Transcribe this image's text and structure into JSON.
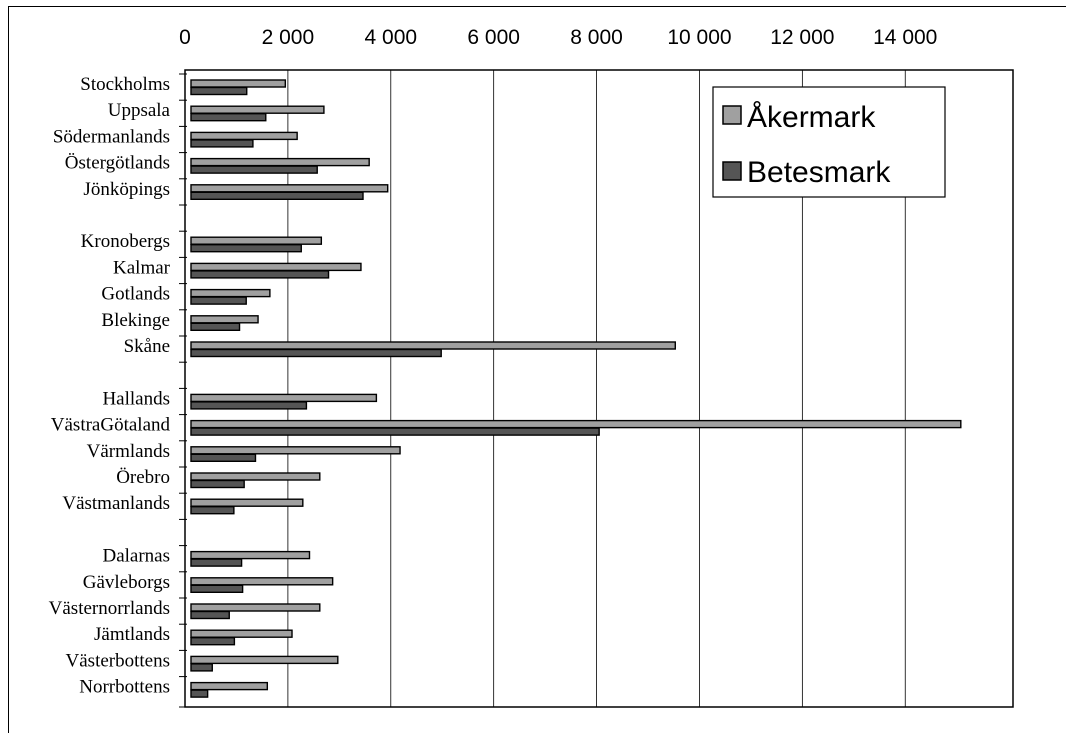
{
  "chart_data": {
    "type": "bar",
    "orientation": "horizontal",
    "xaxis_position": "top",
    "xlim": [
      0,
      15000
    ],
    "xticks": [
      0,
      2000,
      4000,
      6000,
      8000,
      10000,
      12000,
      14000
    ],
    "xtick_labels": [
      "0",
      "2 000",
      "4 000",
      "6 000",
      "8 000",
      "10 000",
      "12 000",
      "14 000"
    ],
    "grid": "vertical",
    "legend_position": "top-right",
    "categories": [
      "Stockholms",
      "Uppsala",
      "Södermanlands",
      "Östergötlands",
      "Jönköpings",
      "",
      "Kronobergs",
      "Kalmar",
      "Gotlands",
      "Blekinge",
      "Skåne",
      "",
      "Hallands",
      "VästraGötaland",
      "Värmlands",
      "Örebro",
      "Västmanlands",
      "",
      "Dalarnas",
      "Gävleborgs",
      "Västernorrlands",
      "Jämtlands",
      "Västerbottens",
      "Norrbottens"
    ],
    "series": [
      {
        "name": "Åkermark",
        "color": "#a0a0a0",
        "values": [
          1950,
          2700,
          2180,
          3580,
          3940,
          null,
          2650,
          3420,
          1650,
          1420,
          9530,
          null,
          3720,
          15080,
          4180,
          2620,
          2290,
          null,
          2420,
          2870,
          2620,
          2080,
          2970,
          1600
        ]
      },
      {
        "name": "Betesmark",
        "color": "#555555",
        "values": [
          1200,
          1570,
          1320,
          2570,
          3460,
          null,
          2260,
          2790,
          1190,
          1060,
          4980,
          null,
          2360,
          8050,
          1370,
          1150,
          950,
          null,
          1100,
          1120,
          860,
          960,
          530,
          440
        ]
      }
    ]
  }
}
